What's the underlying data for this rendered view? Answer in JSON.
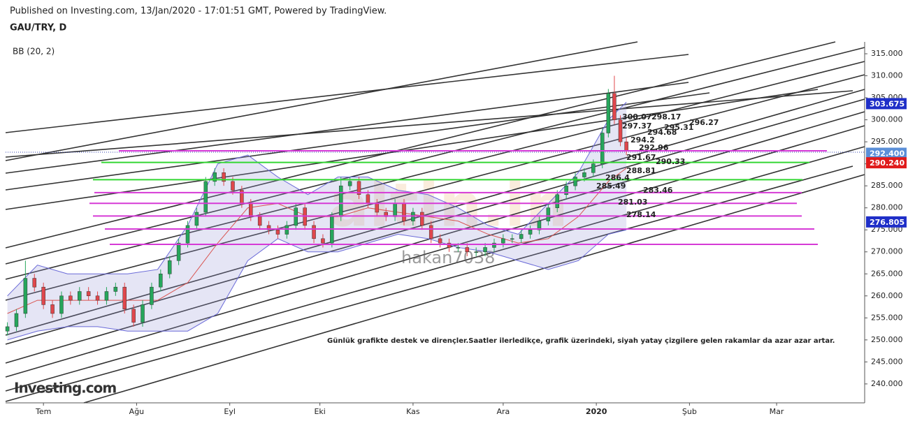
{
  "header": {
    "published": "Published on Investing.com, 13/Jan/2020 - 17:01:51 GMT, Powered by TradingView."
  },
  "chart_data": {
    "type": "candlestick",
    "title": "GAU/TRY, D",
    "indicator": "BB (20, 2)",
    "annotation": "Günlük grafikte destek ve dirençler.Saatler ilerledikçe, grafik üzerindeki, siyah yatay çizgilere gelen rakamlar da azar azar artar.",
    "logo": "Investing.com",
    "watermarks": [
      "altin.in",
      "hakan7038"
    ],
    "up_color": "#26a65b",
    "down_color": "#e0474c",
    "x": [
      -12,
      -9,
      -6,
      -3,
      0,
      3,
      6,
      9,
      12,
      15,
      18,
      21,
      24,
      27,
      30,
      33,
      36,
      39,
      42,
      45,
      48,
      51,
      54,
      57,
      60,
      63,
      66,
      69,
      72,
      75,
      78,
      81,
      84,
      87,
      90,
      93,
      96,
      99,
      102,
      105,
      108,
      111,
      114,
      117,
      120,
      123,
      126,
      129,
      132,
      135,
      138,
      141,
      144,
      147,
      150,
      153,
      156,
      159,
      162,
      165,
      168,
      171,
      174,
      177,
      180,
      183,
      186,
      188,
      190,
      192,
      194
    ],
    "open": [
      252,
      253,
      256,
      264,
      262,
      258,
      256,
      260,
      259,
      261,
      260,
      259,
      261,
      262,
      257,
      254,
      258,
      262,
      265,
      268,
      272,
      276,
      279,
      286,
      288,
      286,
      284,
      281,
      278,
      276,
      275,
      274,
      276,
      280,
      276,
      273,
      272,
      278,
      285,
      286,
      283,
      281,
      279,
      278,
      281,
      277,
      279,
      276,
      273,
      272,
      271,
      271,
      270,
      270,
      271,
      272,
      273,
      273,
      274,
      275,
      277,
      280,
      283,
      285,
      287,
      288,
      290,
      297,
      306,
      300,
      295
    ],
    "high": [
      254,
      257,
      268,
      265,
      263,
      259,
      261,
      261,
      262,
      262,
      261,
      262,
      263,
      263,
      258,
      259,
      263,
      266,
      269,
      273,
      277,
      280,
      287,
      289,
      289,
      287,
      285,
      282,
      279,
      277,
      276,
      277,
      281,
      281,
      277,
      274,
      279,
      287,
      287,
      287,
      284,
      282,
      280,
      282,
      282,
      280,
      280,
      277,
      274,
      273,
      272,
      272,
      271,
      272,
      273,
      274,
      274,
      275,
      276,
      278,
      281,
      284,
      286,
      288,
      289,
      291,
      298,
      307,
      310,
      301,
      296
    ],
    "low": [
      251,
      252,
      255,
      261,
      257,
      255,
      255,
      258,
      258,
      259,
      258,
      258,
      260,
      256,
      253,
      253,
      257,
      261,
      264,
      267,
      271,
      275,
      278,
      285,
      285,
      283,
      280,
      277,
      275,
      274,
      273,
      273,
      275,
      275,
      272,
      271,
      271,
      277,
      284,
      282,
      280,
      278,
      277,
      277,
      276,
      276,
      275,
      272,
      271,
      270,
      270,
      269,
      269,
      269,
      270,
      271,
      272,
      272,
      273,
      274,
      276,
      279,
      282,
      284,
      286,
      287,
      289,
      296,
      299,
      294,
      292
    ],
    "close": [
      253,
      256,
      264,
      262,
      258,
      256,
      260,
      259,
      261,
      260,
      259,
      261,
      262,
      257,
      254,
      258,
      262,
      265,
      268,
      272,
      276,
      279,
      286,
      288,
      286,
      284,
      281,
      278,
      276,
      275,
      274,
      276,
      280,
      276,
      273,
      272,
      278,
      285,
      286,
      283,
      281,
      279,
      278,
      281,
      277,
      279,
      276,
      273,
      272,
      271,
      271,
      270,
      270,
      271,
      272,
      273,
      273,
      274,
      275,
      277,
      280,
      283,
      285,
      287,
      288,
      290,
      297,
      306,
      300,
      295,
      293
    ],
    "bb": {
      "x": [
        -12,
        -2,
        8,
        18,
        28,
        38,
        48,
        58,
        68,
        78,
        88,
        98,
        108,
        118,
        128,
        138,
        148,
        158,
        168,
        178,
        188,
        194
      ],
      "band_color": "#6a6ad8",
      "fill": "rgba(150,150,215,0.25)",
      "mid_color": "#d9534f",
      "upper": [
        260,
        267,
        265,
        265,
        265,
        266,
        276,
        290,
        292,
        287,
        283,
        287,
        287,
        284,
        283,
        280,
        276,
        274,
        281,
        288,
        300,
        304
      ],
      "middle": [
        256,
        259,
        259,
        259,
        259,
        259,
        263,
        272,
        280,
        281,
        278,
        278,
        280,
        279,
        278,
        277,
        274,
        272,
        273,
        278,
        286,
        289
      ],
      "lower": [
        250,
        252,
        253,
        253,
        252,
        252,
        252,
        256,
        268,
        273,
        270,
        270,
        272,
        274,
        273,
        271,
        270,
        268,
        266,
        268,
        274,
        275
      ]
    },
    "levels": [
      {
        "value": 292.96,
        "color": "#d63ad6"
      },
      {
        "value": 290.33,
        "color": "#33d633"
      },
      {
        "value": 286.4,
        "color": "#33d633"
      },
      {
        "value": 283.46,
        "color": "#d63ad6"
      },
      {
        "value": 281.03,
        "color": "#d63ad6"
      },
      {
        "value": 278.14,
        "color": "#d63ad6"
      },
      {
        "value": 275.2,
        "color": "#d63ad6"
      },
      {
        "value": 271.7,
        "color": "#d63ad6"
      }
    ],
    "level_labels": [
      300.07,
      298.17,
      297.37,
      296.27,
      295.31,
      294.68,
      294.2,
      292.96,
      291.67,
      290.33,
      288.81,
      286.4,
      285.49,
      283.46,
      281.03,
      278.14
    ],
    "price_tags": [
      {
        "value": 303.675,
        "label": "303.675",
        "color": "#1f2fc8"
      },
      {
        "value": 292.4,
        "label": "292.400",
        "color": "#5b8fd8"
      },
      {
        "value": 290.24,
        "label": "290.240",
        "color": "#e01b1b"
      },
      {
        "value": 276.805,
        "label": "276.805",
        "color": "#1f2fc8"
      }
    ],
    "xlim": [
      -12.6,
      273.3
    ],
    "xticks": [
      {
        "value": 0,
        "label": "Tem"
      },
      {
        "value": 31,
        "label": "Ağu"
      },
      {
        "value": 62,
        "label": "Eyl"
      },
      {
        "value": 92,
        "label": "Eki"
      },
      {
        "value": 123,
        "label": "Kas"
      },
      {
        "value": 153,
        "label": "Ara"
      },
      {
        "value": 184,
        "label": "2020"
      },
      {
        "value": 215,
        "label": "Şub"
      },
      {
        "value": 244,
        "label": "Mar"
      }
    ],
    "ylim": [
      235.7,
      317.7
    ],
    "yticks": [
      {
        "value": 240,
        "label": "240.000"
      },
      {
        "value": 245,
        "label": "245.000"
      },
      {
        "value": 250,
        "label": "250.000"
      },
      {
        "value": 255,
        "label": "255.000"
      },
      {
        "value": 260,
        "label": "260.000"
      },
      {
        "value": 265,
        "label": "265.000"
      },
      {
        "value": 270,
        "label": "270.000"
      },
      {
        "value": 275,
        "label": "275.000"
      },
      {
        "value": 280,
        "label": "280.000"
      },
      {
        "value": 285,
        "label": "285.000"
      },
      {
        "value": 290,
        "label": "290.000"
      },
      {
        "value": 295,
        "label": "295.000"
      },
      {
        "value": 300,
        "label": "300.000"
      },
      {
        "value": 305,
        "label": "305.000"
      },
      {
        "value": 310,
        "label": "310.000"
      },
      {
        "value": 315,
        "label": "315.000"
      }
    ]
  }
}
